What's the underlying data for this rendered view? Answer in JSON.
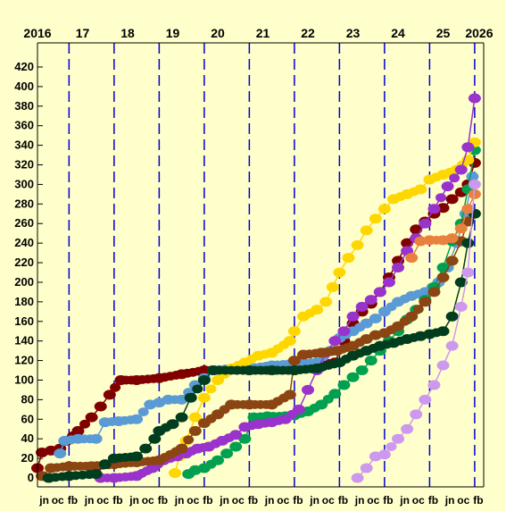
{
  "chart_data": {
    "type": "scatter",
    "title": "",
    "xlabel": "",
    "ylabel": "",
    "ylim": [
      0,
      420
    ],
    "yticks": [
      0,
      20,
      40,
      60,
      80,
      100,
      120,
      140,
      160,
      180,
      200,
      220,
      240,
      260,
      280,
      300,
      320,
      340,
      360,
      380,
      400,
      420
    ],
    "xlim": [
      2016.3,
      2026.2
    ],
    "year_labels": [
      {
        "label": "2016",
        "x": 2016.3
      },
      {
        "label": "17",
        "x": 2017.3
      },
      {
        "label": "18",
        "x": 2018.3
      },
      {
        "label": "19",
        "x": 2019.3
      },
      {
        "label": "20",
        "x": 2020.3
      },
      {
        "label": "21",
        "x": 2021.3
      },
      {
        "label": "22",
        "x": 2022.3
      },
      {
        "label": "23",
        "x": 2023.3
      },
      {
        "label": "24",
        "x": 2024.3
      },
      {
        "label": "25",
        "x": 2025.3
      },
      {
        "label": "2026",
        "x": 2026.1
      }
    ],
    "vlines": [
      2017.0,
      2018.0,
      2019.0,
      2020.0,
      2021.0,
      2022.0,
      2023.0,
      2024.0,
      2025.0,
      2026.0
    ],
    "month_labels": [
      "jn",
      "oc",
      "fb",
      "jn",
      "oc",
      "fb",
      "jn",
      "oc",
      "fb",
      "jn",
      "oc",
      "fb",
      "jn",
      "oc",
      "fb",
      "jn",
      "oc",
      "fb",
      "jn",
      "oc",
      "fb",
      "jn",
      "oc",
      "fb",
      "jn",
      "oc",
      "fb",
      "jn",
      "oc",
      "fb"
    ],
    "month_positions": [
      2016.45,
      2016.75,
      2017.08,
      2017.45,
      2017.75,
      2018.08,
      2018.45,
      2018.75,
      2019.08,
      2019.45,
      2019.75,
      2020.08,
      2020.45,
      2020.75,
      2021.08,
      2021.45,
      2021.75,
      2022.08,
      2022.45,
      2022.75,
      2023.08,
      2023.45,
      2023.75,
      2024.08,
      2024.45,
      2024.75,
      2025.08,
      2025.45,
      2025.75,
      2026.08
    ],
    "series": [
      {
        "color": "#800000",
        "points": [
          [
            2016.3,
            10
          ],
          [
            2016.4,
            26
          ],
          [
            2016.6,
            28
          ],
          [
            2016.8,
            30
          ],
          [
            2016.95,
            38
          ],
          [
            2017.2,
            48
          ],
          [
            2017.5,
            62
          ],
          [
            2017.7,
            73
          ],
          [
            2017.9,
            85
          ],
          [
            2018.15,
            100
          ],
          [
            2018.5,
            100
          ],
          [
            2019.0,
            102
          ],
          [
            2019.5,
            106
          ],
          [
            2020.0,
            110
          ],
          [
            2021.0,
            110
          ],
          [
            2022.0,
            110
          ],
          [
            2022.5,
            115
          ],
          [
            2022.9,
            118
          ],
          [
            2023.1,
            140
          ],
          [
            2023.3,
            158
          ],
          [
            2023.5,
            170
          ],
          [
            2023.7,
            178
          ],
          [
            2023.9,
            190
          ],
          [
            2024.1,
            205
          ],
          [
            2024.3,
            222
          ],
          [
            2024.5,
            240
          ],
          [
            2024.7,
            254
          ],
          [
            2024.9,
            262
          ],
          [
            2025.1,
            270
          ],
          [
            2025.3,
            276
          ],
          [
            2025.5,
            285
          ],
          [
            2025.7,
            292
          ],
          [
            2025.85,
            300
          ],
          [
            2026.0,
            322
          ]
        ]
      },
      {
        "color": "#5b9bd5",
        "points": [
          [
            2016.8,
            25
          ],
          [
            2016.9,
            38
          ],
          [
            2017.2,
            40
          ],
          [
            2017.6,
            40
          ],
          [
            2017.8,
            57
          ],
          [
            2018.1,
            58
          ],
          [
            2018.5,
            60
          ],
          [
            2018.8,
            75
          ],
          [
            2019.0,
            77
          ],
          [
            2019.2,
            80
          ],
          [
            2019.5,
            80
          ],
          [
            2019.8,
            95
          ],
          [
            2020.0,
            102
          ],
          [
            2020.2,
            110
          ],
          [
            2020.6,
            112
          ],
          [
            2021.0,
            112
          ],
          [
            2021.5,
            115
          ],
          [
            2022.0,
            117
          ],
          [
            2022.5,
            118
          ],
          [
            2022.8,
            130
          ],
          [
            2023.0,
            143
          ],
          [
            2023.3,
            150
          ],
          [
            2023.6,
            158
          ],
          [
            2023.8,
            163
          ],
          [
            2024.0,
            170
          ],
          [
            2024.3,
            180
          ],
          [
            2024.6,
            186
          ],
          [
            2024.9,
            190
          ],
          [
            2025.2,
            200
          ],
          [
            2025.4,
            215
          ],
          [
            2025.6,
            240
          ],
          [
            2025.8,
            270
          ],
          [
            2025.95,
            308
          ]
        ]
      },
      {
        "color": "#00a050",
        "points": [
          [
            2019.65,
            4
          ],
          [
            2019.8,
            8
          ],
          [
            2020.0,
            10
          ],
          [
            2020.3,
            18
          ],
          [
            2020.5,
            25
          ],
          [
            2020.7,
            32
          ],
          [
            2020.9,
            40
          ],
          [
            2021.1,
            62
          ],
          [
            2021.4,
            63
          ],
          [
            2021.8,
            63
          ],
          [
            2022.0,
            64
          ],
          [
            2022.3,
            68
          ],
          [
            2022.6,
            75
          ],
          [
            2022.9,
            86
          ],
          [
            2023.1,
            95
          ],
          [
            2023.3,
            103
          ],
          [
            2023.5,
            110
          ],
          [
            2023.7,
            120
          ],
          [
            2023.9,
            130
          ],
          [
            2024.1,
            140
          ],
          [
            2024.3,
            150
          ],
          [
            2024.5,
            162
          ],
          [
            2024.7,
            172
          ],
          [
            2024.9,
            182
          ],
          [
            2025.1,
            195
          ],
          [
            2025.3,
            215
          ],
          [
            2025.5,
            242
          ],
          [
            2025.7,
            260
          ],
          [
            2025.85,
            295
          ],
          [
            2026.0,
            335
          ]
        ]
      },
      {
        "color": "#ffd700",
        "points": [
          [
            2019.35,
            5
          ],
          [
            2019.45,
            22
          ],
          [
            2019.6,
            38
          ],
          [
            2019.8,
            62
          ],
          [
            2020.0,
            82
          ],
          [
            2020.3,
            100
          ],
          [
            2020.6,
            112
          ],
          [
            2020.9,
            118
          ],
          [
            2021.2,
            125
          ],
          [
            2021.5,
            128
          ],
          [
            2021.9,
            140
          ],
          [
            2022.0,
            150
          ],
          [
            2022.2,
            165
          ],
          [
            2022.5,
            172
          ],
          [
            2022.7,
            180
          ],
          [
            2022.85,
            195
          ],
          [
            2023.0,
            210
          ],
          [
            2023.2,
            225
          ],
          [
            2023.4,
            238
          ],
          [
            2023.6,
            253
          ],
          [
            2023.8,
            265
          ],
          [
            2024.0,
            275
          ],
          [
            2024.2,
            285
          ],
          [
            2024.5,
            290
          ],
          [
            2024.8,
            295
          ],
          [
            2025.0,
            305
          ],
          [
            2025.3,
            310
          ],
          [
            2025.6,
            315
          ],
          [
            2025.85,
            325
          ],
          [
            2026.0,
            343
          ]
        ]
      },
      {
        "color": "#9933cc",
        "points": [
          [
            2017.7,
            0
          ],
          [
            2018.0,
            0
          ],
          [
            2018.5,
            2
          ],
          [
            2018.85,
            10
          ],
          [
            2019.1,
            18
          ],
          [
            2019.4,
            22
          ],
          [
            2019.6,
            25
          ],
          [
            2019.85,
            30
          ],
          [
            2020.1,
            32
          ],
          [
            2020.4,
            38
          ],
          [
            2020.7,
            44
          ],
          [
            2020.9,
            52
          ],
          [
            2021.2,
            55
          ],
          [
            2021.5,
            57
          ],
          [
            2021.8,
            60
          ],
          [
            2022.1,
            70
          ],
          [
            2022.3,
            90
          ],
          [
            2022.5,
            110
          ],
          [
            2022.7,
            128
          ],
          [
            2022.9,
            140
          ],
          [
            2023.1,
            150
          ],
          [
            2023.3,
            165
          ],
          [
            2023.5,
            175
          ],
          [
            2023.7,
            182
          ],
          [
            2023.9,
            190
          ],
          [
            2024.1,
            200
          ],
          [
            2024.3,
            215
          ],
          [
            2024.5,
            232
          ],
          [
            2024.7,
            245
          ],
          [
            2024.9,
            260
          ],
          [
            2025.1,
            275
          ],
          [
            2025.4,
            298
          ],
          [
            2025.7,
            315
          ],
          [
            2025.85,
            338
          ],
          [
            2026.0,
            388
          ]
        ]
      },
      {
        "color": "#8b4513",
        "points": [
          [
            2016.4,
            2
          ],
          [
            2016.6,
            10
          ],
          [
            2017.0,
            12
          ],
          [
            2017.5,
            12
          ],
          [
            2018.0,
            14
          ],
          [
            2018.5,
            16
          ],
          [
            2019.0,
            18
          ],
          [
            2019.5,
            30
          ],
          [
            2019.8,
            48
          ],
          [
            2020.0,
            56
          ],
          [
            2020.3,
            65
          ],
          [
            2020.6,
            75
          ],
          [
            2021.0,
            75
          ],
          [
            2021.5,
            75
          ],
          [
            2021.9,
            85
          ],
          [
            2022.0,
            120
          ],
          [
            2022.2,
            126
          ],
          [
            2022.6,
            128
          ],
          [
            2022.95,
            130
          ],
          [
            2023.3,
            135
          ],
          [
            2023.6,
            142
          ],
          [
            2023.8,
            146
          ],
          [
            2024.0,
            148
          ],
          [
            2024.3,
            155
          ],
          [
            2024.6,
            165
          ],
          [
            2024.9,
            180
          ],
          [
            2025.1,
            190
          ],
          [
            2025.3,
            205
          ],
          [
            2025.5,
            222
          ],
          [
            2025.7,
            242
          ],
          [
            2025.85,
            262
          ]
        ]
      },
      {
        "color": "#003d1f",
        "points": [
          [
            2016.55,
            0
          ],
          [
            2017.0,
            2
          ],
          [
            2017.6,
            4
          ],
          [
            2017.8,
            14
          ],
          [
            2018.0,
            20
          ],
          [
            2018.5,
            22
          ],
          [
            2018.7,
            30
          ],
          [
            2018.9,
            40
          ],
          [
            2019.0,
            48
          ],
          [
            2019.3,
            55
          ],
          [
            2019.5,
            62
          ],
          [
            2019.7,
            82
          ],
          [
            2020.0,
            100
          ],
          [
            2020.2,
            110
          ],
          [
            2021.0,
            110
          ],
          [
            2021.5,
            110
          ],
          [
            2022.0,
            110
          ],
          [
            2022.5,
            112
          ],
          [
            2023.0,
            118
          ],
          [
            2023.3,
            125
          ],
          [
            2023.6,
            130
          ],
          [
            2023.9,
            135
          ],
          [
            2024.2,
            138
          ],
          [
            2024.5,
            142
          ],
          [
            2024.8,
            145
          ],
          [
            2025.0,
            147
          ],
          [
            2025.3,
            150
          ],
          [
            2025.5,
            165
          ],
          [
            2025.7,
            200
          ],
          [
            2025.85,
            240
          ],
          [
            2026.0,
            270
          ]
        ]
      },
      {
        "color": "#e8803e",
        "points": [
          [
            2024.6,
            225
          ],
          [
            2024.8,
            242
          ],
          [
            2025.0,
            243
          ],
          [
            2025.3,
            243
          ],
          [
            2025.5,
            245
          ],
          [
            2025.7,
            255
          ],
          [
            2025.85,
            275
          ],
          [
            2026.0,
            290
          ]
        ]
      },
      {
        "color": "#cc99ee",
        "points": [
          [
            2023.4,
            0
          ],
          [
            2023.6,
            10
          ],
          [
            2023.8,
            22
          ],
          [
            2024.0,
            24
          ],
          [
            2024.3,
            40
          ],
          [
            2024.5,
            50
          ],
          [
            2024.7,
            65
          ],
          [
            2024.9,
            80
          ],
          [
            2025.1,
            95
          ],
          [
            2025.3,
            115
          ],
          [
            2025.5,
            135
          ],
          [
            2025.7,
            175
          ],
          [
            2025.85,
            210
          ],
          [
            2026.0,
            300
          ]
        ]
      }
    ]
  }
}
